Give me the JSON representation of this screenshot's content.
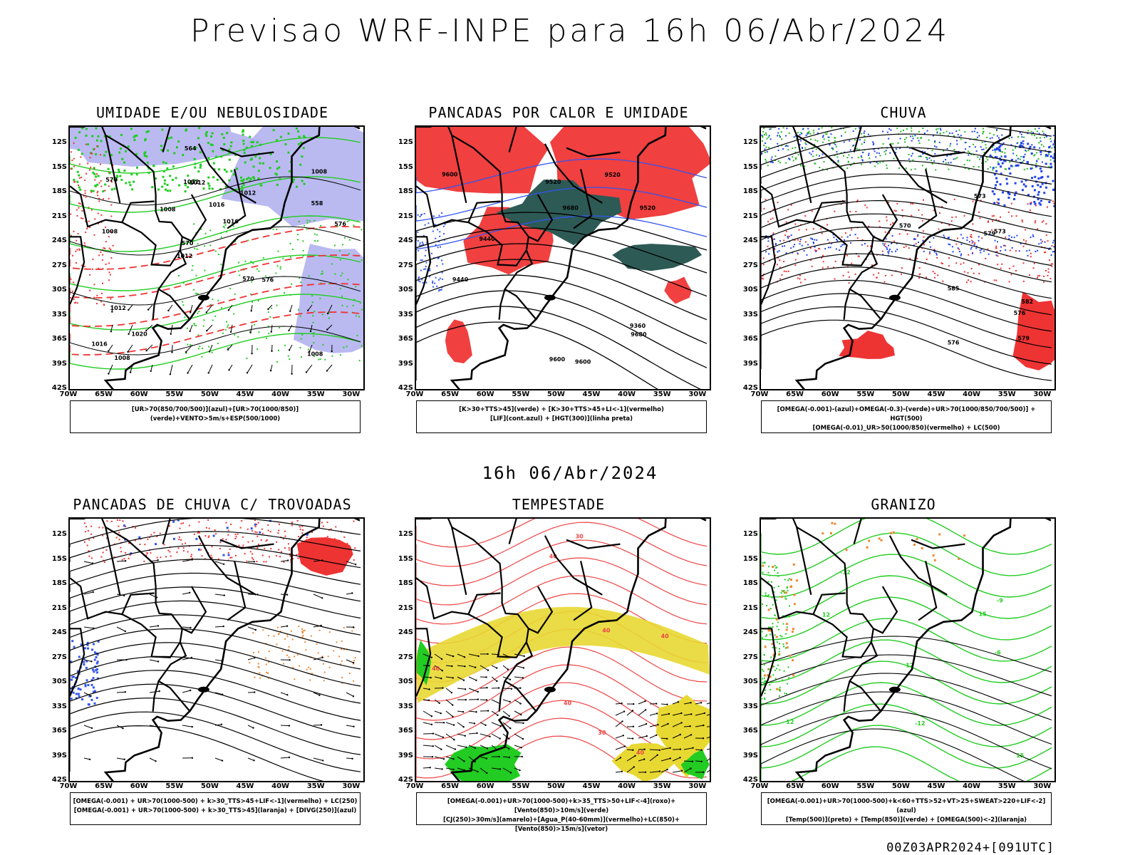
{
  "header": {
    "title": "Previsao WRF-INPE  para 16h 06/Abr/2024"
  },
  "mid_date": "16h 06/Abr/2024",
  "footer": "00Z03APR2024+[091UTC]",
  "axes": {
    "lat_labels": [
      "12S",
      "15S",
      "18S",
      "21S",
      "24S",
      "27S",
      "30S",
      "33S",
      "36S",
      "39S",
      "42S"
    ],
    "lon_labels": [
      "70W",
      "65W",
      "60W",
      "55W",
      "50W",
      "45W",
      "40W",
      "35W",
      "30W"
    ]
  },
  "panels": [
    {
      "title": "UMIDADE E/OU NEBULOSIDADE",
      "legend": [
        "[UR>70(850/700/500)](azul)+[UR>70(1000/850)](verde)+VENTO>5m/s+ESP(500/1000)"
      ],
      "contour_labels": [
        "1008",
        "1008",
        "1008",
        "1012",
        "1012",
        "1008",
        "1012",
        "1016",
        "1012",
        "1008",
        "1016",
        "1020",
        "1012",
        "1016",
        "576",
        "570",
        "564",
        "576",
        "570",
        "558",
        "570"
      ],
      "colors": {
        "fill": "#b3b3f0",
        "line": "#22cc22",
        "dash": "#ee3333",
        "isobar": "#000000"
      }
    },
    {
      "title": "PANCADAS POR CALOR E UMIDADE",
      "legend": [
        "[K>30+TTS>45](verde) + [K>30+TTS>45+LI<-1](vermelho)",
        "[LIF](cont.azul) + [HGT(300)](linha preta)"
      ],
      "contour_labels": [
        "9680",
        "9680",
        "9600",
        "9520",
        "9600",
        "9520",
        "9600",
        "9520",
        "9440",
        "9440",
        "9360"
      ],
      "colors": {
        "fill": "#f04040",
        "fill2": "#2d5a55",
        "line": "#3355ee",
        "isobar": "#000000"
      }
    },
    {
      "title": "CHUVA",
      "legend": [
        "[OMEGA(-0.001)-(azul)+OMEGA(-0.3)-(verde)+UR>70(1000/850/700/500)] + HGT(500)",
        "[OMEGA(-0.01)_UR>50(1000/850)(vermelho) + LC(500)"
      ],
      "contour_labels": [
        "585",
        "582",
        "579",
        "576",
        "576",
        "573",
        "573",
        "570",
        "579"
      ],
      "colors": {
        "fill": "#ee3333",
        "fill2": "#2244ee",
        "fill3": "#22bb22",
        "isobar": "#000000"
      }
    },
    {
      "title": "PANCADAS DE CHUVA C/ TROVOADAS",
      "legend": [
        "[OMEGA(-0.001) + UR>70(1000-500) + k>30_TTS>45+LIF<-1](vermelho) + LC(250)",
        "[OMEGA(-0.001) + UR>70(1000-500) + k>30_TTS>45](laranja) + [DIVG(250)](azul)"
      ],
      "contour_labels": [],
      "colors": {
        "fill": "#ee3333",
        "fill2": "#ee8833",
        "fill3": "#3355ee",
        "isobar": "#000000"
      }
    },
    {
      "title": "TEMPESTADE",
      "legend": [
        "[OMEGA(-0.001)+UR>70(1000-500)+k>35_TTS>50+LIF<-4](roxo)+[Vento(850)>10m/s](verde)",
        "[CJ(250)>30m/s](amarelo)+[Agua_P(40-60mm)](vermelho)+LC(850)+[Vento(850)>15m/s](vetor)"
      ],
      "contour_labels": [
        "40",
        "40",
        "40",
        "30",
        "30",
        "40",
        "40",
        "40"
      ],
      "colors": {
        "fill": "#e8d832",
        "fill2": "#22cc22",
        "line": "#ee4444",
        "isobar": "#000000"
      }
    },
    {
      "title": "GRANIZO",
      "legend": [
        "[OMEGA(-0.001)+UR>70(1000-500)+k<60+TTS>52+VT>25+SWEAT>220+LIF<-2](azul)",
        "[Temp(500)](preto) + [Temp(850)](verde) + [OMEGA(500)<-2](laranja)"
      ],
      "contour_labels": [
        "-12",
        "-12",
        "15",
        "12",
        "12",
        "15",
        "12",
        "-9",
        "-6"
      ],
      "colors": {
        "line": "#22cc22",
        "fill2": "#ee8833",
        "isobar": "#000000"
      }
    }
  ]
}
